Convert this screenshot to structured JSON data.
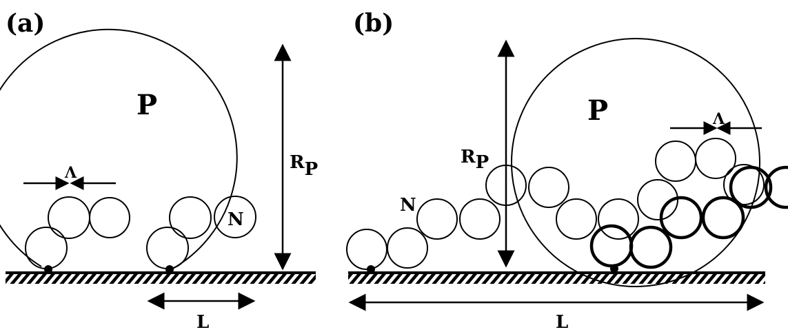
{
  "panels": [
    {
      "id": "a",
      "label": "(a)",
      "big_particle_label": "P",
      "radius_label": "R",
      "radius_sub": "P",
      "spacing_label": "Λ",
      "small_particle_label": "N",
      "length_label": "L"
    },
    {
      "id": "b",
      "label": "(b)",
      "big_particle_label": "P",
      "radius_label": "R",
      "radius_sub": "P",
      "spacing_label": "Λ",
      "small_particle_label": "N",
      "length_label": "L"
    }
  ]
}
